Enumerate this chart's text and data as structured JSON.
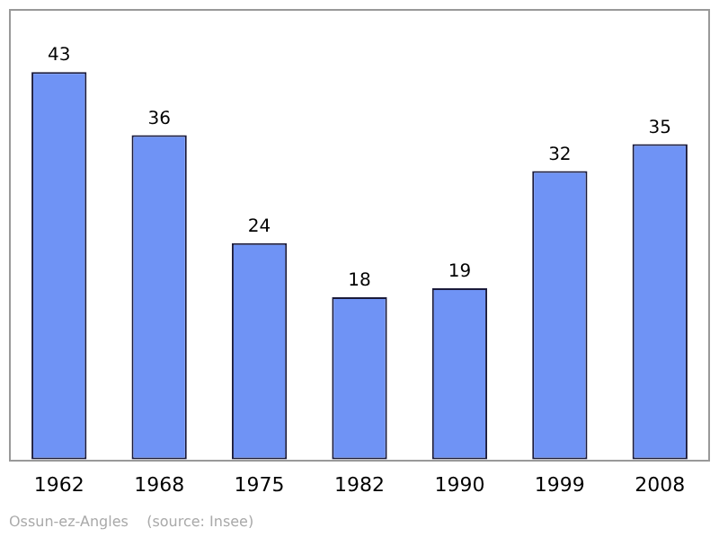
{
  "chart_data": {
    "type": "bar",
    "categories": [
      "1962",
      "1968",
      "1975",
      "1982",
      "1990",
      "1999",
      "2008"
    ],
    "values": [
      43,
      36,
      24,
      18,
      19,
      32,
      35
    ],
    "color": "#6f93f5",
    "data_labels": true,
    "grid": false,
    "legend": false,
    "annotations": [
      "Ossun-ez-Angles    (source: Insee)"
    ]
  }
}
